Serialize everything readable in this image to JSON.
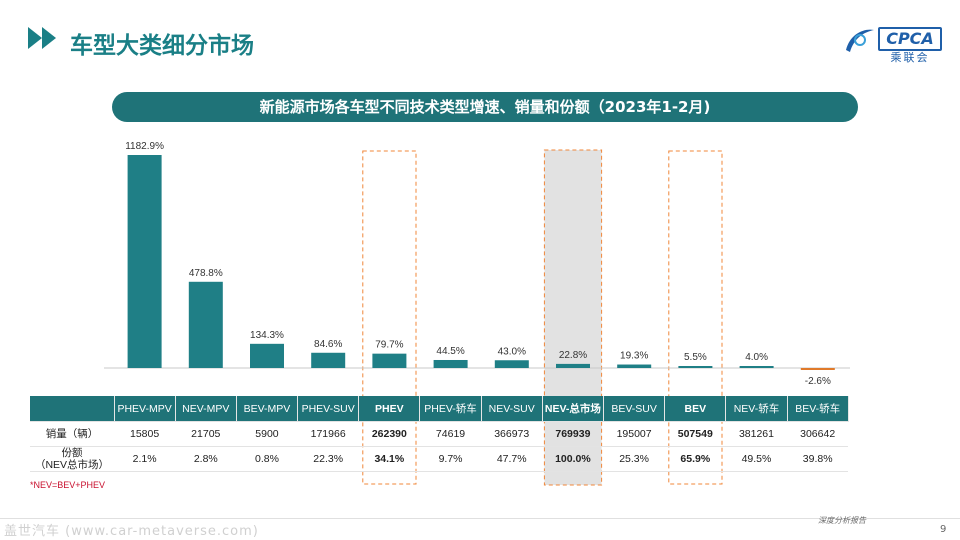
{
  "header": {
    "title": "车型大类细分市场"
  },
  "logo": {
    "text": "CPCA",
    "subtitle": "乘联会"
  },
  "banner": {
    "title": "新能源市场各车型不同技术类型增速、销量和份额（2023年1-2月)"
  },
  "chart_data": {
    "type": "bar",
    "categories": [
      "PHEV-MPV",
      "NEV-MPV",
      "BEV-MPV",
      "PHEV-SUV",
      "PHEV",
      "PHEV-轿车",
      "NEV-SUV",
      "NEV-总市场",
      "BEV-SUV",
      "BEV",
      "NEV-轿车",
      "BEV-轿车"
    ],
    "values": [
      1182.9,
      478.8,
      134.3,
      84.6,
      79.7,
      44.5,
      43.0,
      22.8,
      19.3,
      5.5,
      4.0,
      -2.6
    ],
    "value_labels": [
      "1182.9%",
      "478.8%",
      "134.3%",
      "84.6%",
      "79.7%",
      "44.5%",
      "43.0%",
      "22.8%",
      "19.3%",
      "5.5%",
      "4.0%",
      "-2.6%"
    ],
    "highlight_dashed": [
      "PHEV",
      "BEV"
    ],
    "highlight_shaded": [
      "NEV-总市场"
    ],
    "bar_color": "#1f7f86",
    "negative_color": "#e07a2b",
    "highlight_color": "#f0873a",
    "title": "",
    "xlabel": "",
    "ylabel": ""
  },
  "table": {
    "rows": [
      {
        "label": "销量（辆）",
        "values": [
          "15805",
          "21705",
          "5900",
          "171966",
          "262390",
          "74619",
          "366973",
          "769939",
          "195007",
          "507549",
          "381261",
          "306642"
        ]
      },
      {
        "label": "份额\n（NEV总市场）",
        "values": [
          "2.1%",
          "2.8%",
          "0.8%",
          "22.3%",
          "34.1%",
          "9.7%",
          "47.7%",
          "100.0%",
          "25.3%",
          "65.9%",
          "49.5%",
          "39.8%"
        ]
      }
    ],
    "bold_columns": [
      "PHEV",
      "NEV-总市场",
      "BEV"
    ]
  },
  "footnote": "*NEV=BEV+PHEV",
  "footer": {
    "watermark": "盖世汽车 (www.car-metaverse.com)",
    "report": "深度分析报告",
    "page": "9"
  }
}
